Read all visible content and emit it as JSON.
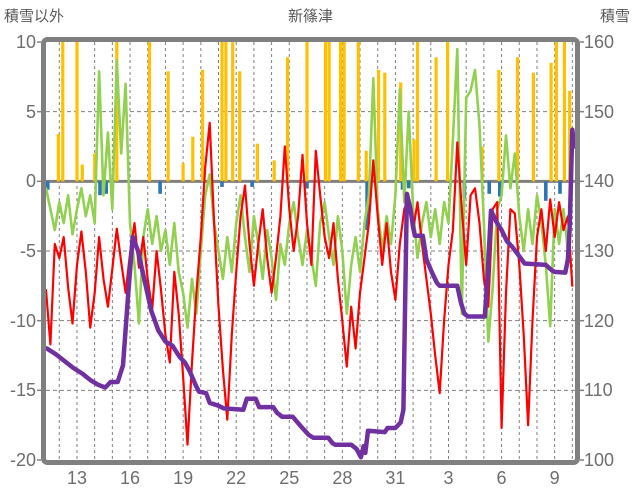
{
  "header": {
    "left_axis_title": "積雪以外",
    "chart_title": "新篠津",
    "right_axis_title": "積雪"
  },
  "chart_data": {
    "type": "line",
    "title": "新篠津",
    "grid": "dashed daily vertical + 5-unit horizontal, solid zero line",
    "legend_position": "none",
    "x_axis": {
      "day_min": 11.25,
      "day_max": 41.15,
      "gridline_step_days": 1,
      "tick_days": [
        13,
        16,
        19,
        22,
        25,
        28,
        31,
        34,
        37,
        40
      ],
      "tick_labels": [
        "13",
        "16",
        "19",
        "22",
        "25",
        "28",
        "31",
        "3",
        "6",
        "9"
      ]
    },
    "left_axis": {
      "title": "積雪以外",
      "min": -20,
      "max": 10,
      "ticks": [
        10,
        5,
        0,
        -5,
        -10,
        -15,
        -20
      ],
      "dashed_grid_values": [
        5,
        -5,
        -10,
        -15
      ],
      "zero_line_value": 0
    },
    "right_axis": {
      "title": "積雪",
      "min": 100,
      "max": 160,
      "ticks": [
        160,
        150,
        140,
        130,
        120,
        110,
        100
      ]
    },
    "styles": {
      "orange": "#FFC000",
      "blue": "#2E75B6",
      "green": "#92D050",
      "red": "#FF0000",
      "purple": "#7030A0",
      "grid": "#808080",
      "border": "#808080",
      "background": "#FFFFFF"
    },
    "series": {
      "bars_orange_up": {
        "axis": "left",
        "note": "vertical bars rising from 0, clipped at +10",
        "points": [
          [
            11.95,
            3.4
          ],
          [
            12.2,
            10
          ],
          [
            13.0,
            10
          ],
          [
            13.3,
            1.2
          ],
          [
            14.0,
            2.0
          ],
          [
            15.25,
            10
          ],
          [
            17.1,
            10
          ],
          [
            18.15,
            7.9
          ],
          [
            19.0,
            1.3
          ],
          [
            19.55,
            3.2
          ],
          [
            20.1,
            8.0
          ],
          [
            21.2,
            10
          ],
          [
            21.42,
            10
          ],
          [
            21.8,
            10
          ],
          [
            22.2,
            7.9
          ],
          [
            23.2,
            2.7
          ],
          [
            24.15,
            1.5
          ],
          [
            24.9,
            8.9
          ],
          [
            26.0,
            10
          ],
          [
            27.05,
            10
          ],
          [
            27.25,
            10
          ],
          [
            27.9,
            10
          ],
          [
            28.1,
            10
          ],
          [
            28.9,
            10
          ],
          [
            29.35,
            2.2
          ],
          [
            30.05,
            8.0
          ],
          [
            30.4,
            7.8
          ],
          [
            31.3,
            7.1
          ],
          [
            32.05,
            3.0
          ],
          [
            32.25,
            10
          ],
          [
            33.3,
            8.9
          ],
          [
            33.95,
            10
          ],
          [
            35.9,
            2.5
          ],
          [
            36.85,
            8.0
          ],
          [
            37.9,
            8.9
          ],
          [
            38.8,
            7.8
          ],
          [
            39.8,
            8.5
          ],
          [
            40.1,
            10
          ],
          [
            40.55,
            10
          ],
          [
            40.85,
            6.5
          ]
        ]
      },
      "bars_blue_down": {
        "axis": "left",
        "note": "small bars hanging below 0, depth in left-axis units",
        "points": [
          [
            11.35,
            0.6
          ],
          [
            14.3,
            1.0
          ],
          [
            14.65,
            0.9
          ],
          [
            15.0,
            0.5
          ],
          [
            17.7,
            0.9
          ],
          [
            21.2,
            0.4
          ],
          [
            22.9,
            0.4
          ],
          [
            26.0,
            0.5
          ],
          [
            29.4,
            3.5
          ],
          [
            31.4,
            0.6
          ],
          [
            31.75,
            0.5
          ],
          [
            34.9,
            1.2
          ],
          [
            36.3,
            0.9
          ],
          [
            36.9,
            1.1
          ],
          [
            39.5,
            1.4
          ],
          [
            40.3,
            0.9
          ]
        ]
      },
      "line_green": {
        "axis": "left",
        "start_day": 11.25,
        "step_days": 0.25,
        "values": [
          -0.5,
          -2.0,
          -3.5,
          -1.5,
          -3.0,
          -1.0,
          -3.8,
          -2.0,
          -0.5,
          -2.5,
          -1.0,
          -3.0,
          7.9,
          -1.0,
          3.5,
          -2.0,
          8.7,
          2.0,
          7.0,
          -3.0,
          -6.0,
          -10.2,
          -4.0,
          -2.0,
          -4.5,
          -2.5,
          -5.0,
          -3.5,
          -6.0,
          -3.0,
          -6.5,
          -8.0,
          -10.5,
          -7.0,
          -9.5,
          -5.0,
          -1.0,
          0.5,
          -3.0,
          -5.0,
          -7.0,
          -4.0,
          -6.5,
          -3.0,
          -1.0,
          -4.0,
          -6.5,
          -2.5,
          -4.5,
          -7.0,
          -3.5,
          -5.5,
          -8.5,
          -4.5,
          -6.0,
          -3.0,
          -1.5,
          -4.0,
          -6.0,
          -3.5,
          -5.5,
          -7.5,
          -3.0,
          -1.5,
          -4.0,
          -6.0,
          -2.5,
          -5.0,
          -9.5,
          -6.0,
          -4.0,
          -6.5,
          -3.0,
          -1.0,
          7.4,
          -2.0,
          -5.0,
          -2.5,
          -4.5,
          -1.0,
          6.6,
          -1.5,
          5.0,
          -2.0,
          -5.5,
          -3.0,
          -1.5,
          -4.0,
          -2.0,
          -4.5,
          -1.5,
          -3.0,
          3.0,
          9.5,
          -9.5,
          6.0,
          6.5,
          8.0,
          4.0,
          -3.0,
          -11.5,
          -7.6,
          -2.0,
          -1.0,
          3.3,
          -0.5,
          2.0,
          -2.5,
          -5.0,
          -2.0,
          -4.5,
          -1.0,
          -3.0,
          -6.0,
          -10.4,
          -2.0,
          -4.5,
          -2.0,
          -5.0,
          3.0
        ]
      },
      "line_red": {
        "axis": "left",
        "start_day": 11.25,
        "step_days": 0.25,
        "values": [
          -7.8,
          -11.7,
          -4.5,
          -5.5,
          -4.0,
          -7.6,
          -10.2,
          -6.0,
          -3.6,
          -6.5,
          -10.5,
          -8.0,
          -4.0,
          -7.0,
          -9.0,
          -6.3,
          -3.4,
          -5.8,
          -8.0,
          -5.2,
          -3.0,
          -6.2,
          -4.0,
          -7.0,
          -9.2,
          -5.0,
          -7.8,
          -11.0,
          -13.0,
          -6.5,
          -9.5,
          -14.0,
          -18.9,
          -13.0,
          -8.0,
          -4.0,
          1.0,
          4.2,
          -3.0,
          -9.0,
          -13.5,
          -17.1,
          -11.0,
          -6.5,
          -2.5,
          -0.3,
          -4.5,
          -7.5,
          -4.5,
          -2.0,
          -5.5,
          -8.0,
          -5.5,
          -2.5,
          2.5,
          -2.0,
          -5.0,
          -2.5,
          1.9,
          -3.0,
          -6.0,
          2.2,
          -1.0,
          -4.0,
          -5.5,
          -3.0,
          -7.0,
          -10.0,
          -13.3,
          -9.0,
          -12.0,
          -8.0,
          -5.5,
          -3.0,
          1.5,
          -2.5,
          -6.0,
          -3.0,
          -6.5,
          -8.5,
          -4.5,
          -2.0,
          -1.2,
          -3.5,
          -1.5,
          -4.5,
          -7.0,
          -9.5,
          -12.5,
          -15.2,
          -10.0,
          -6.0,
          -3.5,
          2.8,
          -2.0,
          -6.0,
          -1.0,
          -0.5,
          -3.0,
          -7.0,
          -9.0,
          -2.0,
          -1.5,
          -17.7,
          -8.0,
          -2.0,
          -2.3,
          -6.0,
          -11.0,
          -17.5,
          -10.0,
          -4.0,
          -2.0,
          -5.0,
          -1.3,
          -4.0,
          -1.5,
          -3.5,
          -2.5,
          -7.5
        ]
      },
      "line_purple_snow_depth": {
        "axis": "right",
        "note": "snow depth (積雪), cm, read on right axis",
        "points": [
          [
            11.3,
            116
          ],
          [
            11.8,
            115.2
          ],
          [
            12.3,
            114.2
          ],
          [
            12.8,
            113.2
          ],
          [
            13.3,
            112.4
          ],
          [
            13.8,
            111.4
          ],
          [
            14.2,
            110.8
          ],
          [
            14.6,
            110.4
          ],
          [
            14.9,
            111.2
          ],
          [
            15.3,
            111.2
          ],
          [
            15.6,
            113.6
          ],
          [
            15.9,
            124
          ],
          [
            16.15,
            132
          ],
          [
            16.45,
            130
          ],
          [
            16.8,
            126
          ],
          [
            17.2,
            121.4
          ],
          [
            17.6,
            118.6
          ],
          [
            18.0,
            117
          ],
          [
            18.4,
            116.4
          ],
          [
            18.8,
            114.8
          ],
          [
            19.1,
            114
          ],
          [
            19.4,
            112.6
          ],
          [
            19.7,
            110.8
          ],
          [
            19.9,
            109.8
          ],
          [
            20.3,
            109.6
          ],
          [
            20.5,
            108.2
          ],
          [
            21.0,
            107.8
          ],
          [
            21.3,
            107.4
          ],
          [
            22.4,
            107.2
          ],
          [
            22.6,
            108.8
          ],
          [
            23.1,
            108.8
          ],
          [
            23.3,
            107.6
          ],
          [
            24.1,
            107.6
          ],
          [
            24.3,
            106.8
          ],
          [
            24.6,
            106.2
          ],
          [
            25.2,
            106.2
          ],
          [
            25.6,
            105
          ],
          [
            26.1,
            103.6
          ],
          [
            26.35,
            103.2
          ],
          [
            27.2,
            103.2
          ],
          [
            27.45,
            102.4
          ],
          [
            27.6,
            102.2
          ],
          [
            28.5,
            102.2
          ],
          [
            28.8,
            101.6
          ],
          [
            29.05,
            100.4
          ],
          [
            29.2,
            102
          ],
          [
            29.3,
            101
          ],
          [
            29.45,
            104.2
          ],
          [
            30.4,
            104
          ],
          [
            30.55,
            104.6
          ],
          [
            31.0,
            104.6
          ],
          [
            31.3,
            105.4
          ],
          [
            31.45,
            107.2
          ],
          [
            31.65,
            138.2
          ],
          [
            31.85,
            136
          ],
          [
            32.0,
            133.4
          ],
          [
            32.1,
            132.2
          ],
          [
            32.55,
            132.2
          ],
          [
            32.75,
            128.8
          ],
          [
            33.05,
            127
          ],
          [
            33.35,
            125.4
          ],
          [
            33.5,
            125
          ],
          [
            34.5,
            125
          ],
          [
            34.7,
            122.6
          ],
          [
            34.9,
            121
          ],
          [
            35.1,
            120.6
          ],
          [
            36.05,
            120.6
          ],
          [
            36.2,
            126
          ],
          [
            36.4,
            135.8
          ],
          [
            36.7,
            134.2
          ],
          [
            37.0,
            133
          ],
          [
            37.3,
            131.4
          ],
          [
            37.6,
            130.6
          ],
          [
            37.9,
            129.6
          ],
          [
            38.3,
            128.2
          ],
          [
            39.5,
            128
          ],
          [
            39.85,
            127.2
          ],
          [
            40.0,
            127
          ],
          [
            40.6,
            126.9
          ],
          [
            40.75,
            128.8
          ],
          [
            40.85,
            133.4
          ],
          [
            41.0,
            147.4
          ],
          [
            41.1,
            145
          ]
        ]
      }
    }
  }
}
